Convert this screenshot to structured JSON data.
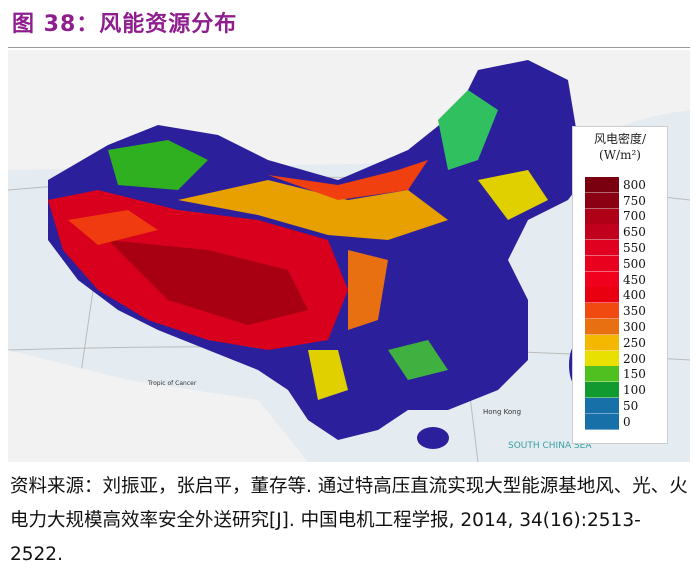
{
  "figure": {
    "title": "图 38：风能资源分布"
  },
  "map": {
    "labels": {
      "sea": "SOUTH CHINA SEA",
      "city": "Hong Kong",
      "tropic": "Tropic of Cancer"
    },
    "legend": {
      "title_line1": "风电密度/",
      "title_line2": "(W/m²)",
      "entries": [
        {
          "value": "800",
          "color": "#7a0010"
        },
        {
          "value": "750",
          "color": "#8c0014"
        },
        {
          "value": "700",
          "color": "#b00018"
        },
        {
          "value": "650",
          "color": "#c0001c"
        },
        {
          "value": "550",
          "color": "#e00020"
        },
        {
          "value": "500",
          "color": "#e8001e"
        },
        {
          "value": "450",
          "color": "#f0001c"
        },
        {
          "value": "400",
          "color": "#e80010"
        },
        {
          "value": "350",
          "color": "#f04a10"
        },
        {
          "value": "300",
          "color": "#e87010"
        },
        {
          "value": "250",
          "color": "#f5b800"
        },
        {
          "value": "200",
          "color": "#e8e000"
        },
        {
          "value": "150",
          "color": "#50c020"
        },
        {
          "value": "100",
          "color": "#109a30"
        },
        {
          "value": "50",
          "color": "#1870a8"
        },
        {
          "value": "0",
          "color": "#1870a8"
        }
      ]
    }
  },
  "source": {
    "text": "资料来源：刘振亚，张启平，董存等. 通过特高压直流实现大型能源基地风、光、火电力大规模高效率安全外送研究[J]. 中国电机工程学报, 2014, 34(16):2513-2522."
  }
}
